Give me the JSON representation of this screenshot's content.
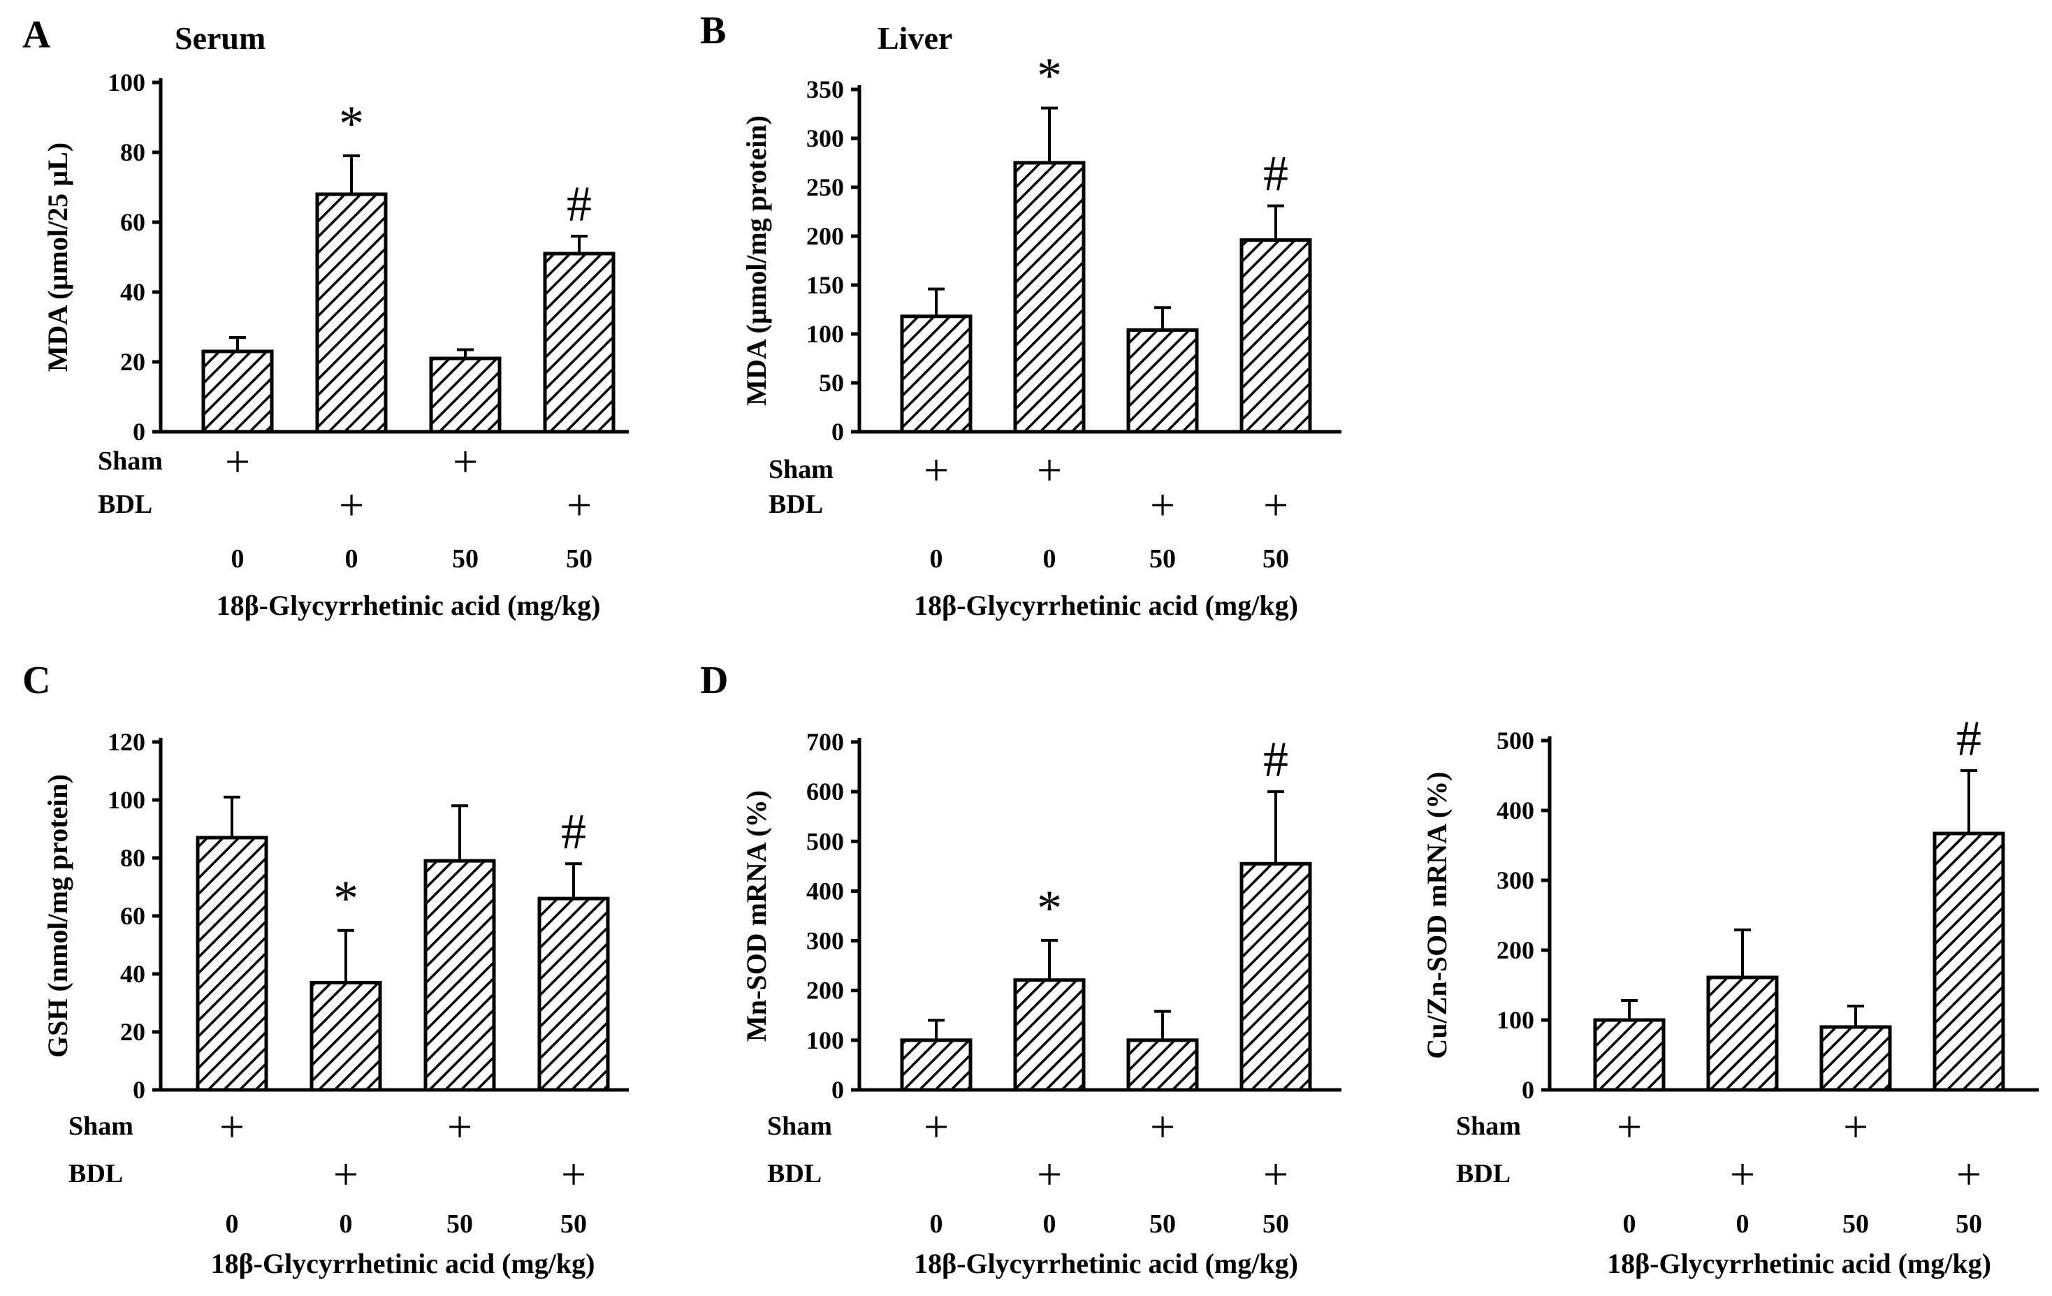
{
  "chart_data": [
    {
      "panel": "A",
      "type": "bar",
      "title": "Serum",
      "ylabel": "MDA (µmol/25 µL)",
      "ylim": [
        0,
        100
      ],
      "yticks": [
        0,
        20,
        40,
        60,
        80,
        100
      ],
      "values": [
        23,
        68,
        21,
        51
      ],
      "errors": [
        4,
        11,
        2.5,
        5
      ],
      "annotations": [
        "",
        "*",
        "",
        "#"
      ],
      "sham": [
        "+",
        "",
        "+",
        ""
      ],
      "bdl": [
        "",
        "+",
        "",
        "+"
      ],
      "doses": [
        "0",
        "0",
        "50",
        "50"
      ],
      "row_labels": {
        "sham": "Sham",
        "bdl": "BDL"
      },
      "xlabel": "18β-Glycyrrhetinic acid (mg/kg)"
    },
    {
      "panel": "B",
      "type": "bar",
      "title": "Liver",
      "ylabel": "MDA (µmol/mg protein)",
      "ylim": [
        0,
        350
      ],
      "yticks": [
        0,
        50,
        100,
        150,
        200,
        250,
        300,
        350
      ],
      "values": [
        118,
        275,
        104,
        196
      ],
      "errors": [
        28,
        56,
        23,
        35
      ],
      "annotations": [
        "",
        "*",
        "",
        "#"
      ],
      "sham": [
        "+",
        "+",
        "",
        ""
      ],
      "bdl": [
        "",
        "",
        "+",
        "+"
      ],
      "doses": [
        "0",
        "0",
        "50",
        "50"
      ],
      "row_labels": {
        "sham": "Sham",
        "bdl": "BDL"
      },
      "xlabel": "18β-Glycyrrhetinic acid (mg/kg)"
    },
    {
      "panel": "C",
      "type": "bar",
      "title": "",
      "ylabel": "GSH (nmol/mg protein)",
      "ylim": [
        0,
        120
      ],
      "yticks": [
        0,
        20,
        40,
        60,
        80,
        100,
        120
      ],
      "values": [
        87,
        37,
        79,
        66
      ],
      "errors": [
        14,
        18,
        19,
        12
      ],
      "annotations": [
        "",
        "*",
        "",
        "#"
      ],
      "sham": [
        "+",
        "",
        "+",
        ""
      ],
      "bdl": [
        "",
        "+",
        "",
        "+"
      ],
      "doses": [
        "0",
        "0",
        "50",
        "50"
      ],
      "row_labels": {
        "sham": "Sham",
        "bdl": "BDL"
      },
      "xlabel": "18β-Glycyrrhetinic acid (mg/kg)"
    },
    {
      "panel": "D",
      "type": "bar",
      "title": "",
      "ylabel": "Mn-SOD mRNA (%)",
      "ylim": [
        0,
        700
      ],
      "yticks": [
        0,
        100,
        200,
        300,
        400,
        500,
        600,
        700
      ],
      "values": [
        100,
        221,
        100,
        455
      ],
      "errors": [
        40,
        80,
        58,
        145
      ],
      "annotations": [
        "",
        "*",
        "",
        "#"
      ],
      "sham": [
        "+",
        "",
        "+",
        ""
      ],
      "bdl": [
        "",
        "+",
        "",
        "+"
      ],
      "doses": [
        "0",
        "0",
        "50",
        "50"
      ],
      "row_labels": {
        "sham": "Sham",
        "bdl": "BDL"
      },
      "xlabel": "18β-Glycyrrhetinic acid (mg/kg)"
    },
    {
      "panel": "",
      "type": "bar",
      "title": "",
      "ylabel": "Cu/Zn-SOD mRNA (%)",
      "ylim": [
        0,
        500
      ],
      "yticks": [
        0,
        100,
        200,
        300,
        400,
        500
      ],
      "values": [
        100,
        161,
        90,
        367
      ],
      "errors": [
        28,
        68,
        30,
        90
      ],
      "annotations": [
        "",
        "",
        "",
        "#"
      ],
      "sham": [
        "+",
        "",
        "+",
        ""
      ],
      "bdl": [
        "",
        "+",
        "",
        "+"
      ],
      "doses": [
        "0",
        "0",
        "50",
        "50"
      ],
      "row_labels": {
        "sham": "Sham",
        "bdl": "BDL"
      },
      "xlabel": "18β-Glycyrrhetinic acid (mg/kg)"
    }
  ]
}
